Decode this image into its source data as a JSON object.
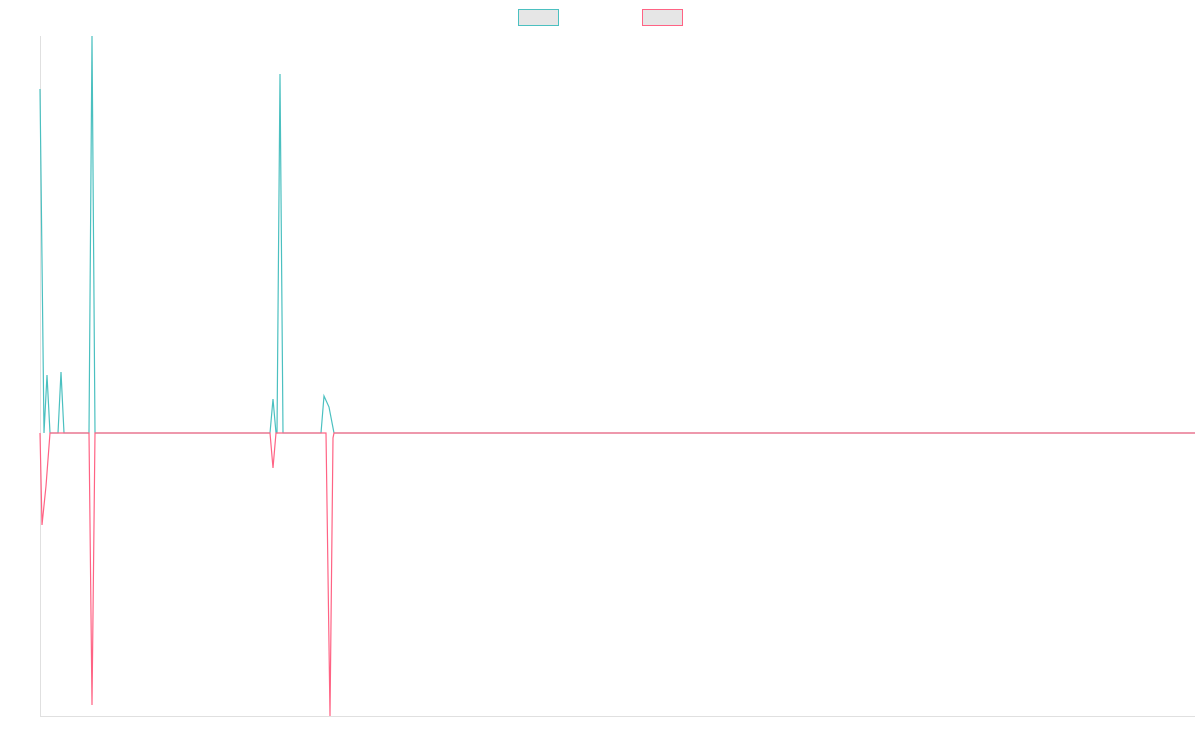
{
  "chart_data": {
    "type": "line",
    "xlim": [
      0,
      1155
    ],
    "ylim": [
      -283,
      397
    ],
    "legend": "top",
    "series": [
      {
        "color": "#4bc0c0",
        "x": [
          0,
          4,
          7,
          10,
          18,
          21,
          24,
          49,
          52,
          55,
          230,
          233,
          236,
          237,
          240,
          243,
          281,
          284,
          289,
          294,
          1155
        ],
        "values": [
          344,
          0,
          58,
          0,
          0,
          61,
          0,
          0,
          397,
          0,
          0,
          34,
          0,
          0,
          359,
          0,
          0,
          37,
          26,
          0,
          0
        ]
      },
      {
        "color": "#ff6384",
        "x": [
          0,
          2,
          6,
          10,
          49,
          52,
          55,
          230,
          233,
          236,
          286,
          290,
          293,
          294,
          1155
        ],
        "values": [
          0,
          -92,
          -53,
          0,
          0,
          -272,
          0,
          0,
          -35,
          0,
          0,
          -283,
          -5,
          0,
          0
        ]
      }
    ]
  }
}
